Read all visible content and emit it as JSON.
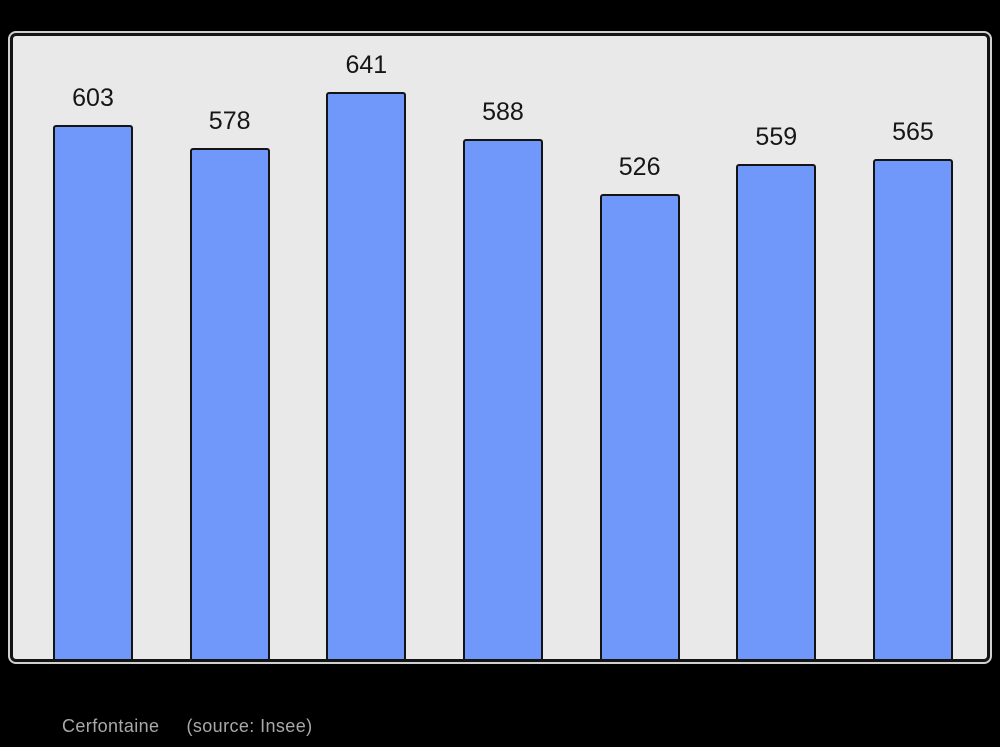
{
  "window": {
    "background": "#000000"
  },
  "chart_data": {
    "type": "bar",
    "values": [
      603,
      578,
      641,
      588,
      526,
      559,
      565
    ],
    "data_labels": [
      "603",
      "578",
      "641",
      "588",
      "526",
      "559",
      "565"
    ],
    "title": "",
    "xlabel": "",
    "ylabel": "",
    "ylim": [
      0,
      704
    ],
    "grid": false,
    "legend": false,
    "axis_tick_labels": "none",
    "colors": {
      "bar_fill": "#7097fa",
      "bar_border": "#141414",
      "plot_background": "#e9e9e9",
      "frame_border": "#141414",
      "frame_outline": "#d0d0d0",
      "value_label": "#161616"
    }
  },
  "caption": {
    "commune": "Cerfontaine",
    "source": "(source: Insee)",
    "color": "#a9a9a9"
  }
}
